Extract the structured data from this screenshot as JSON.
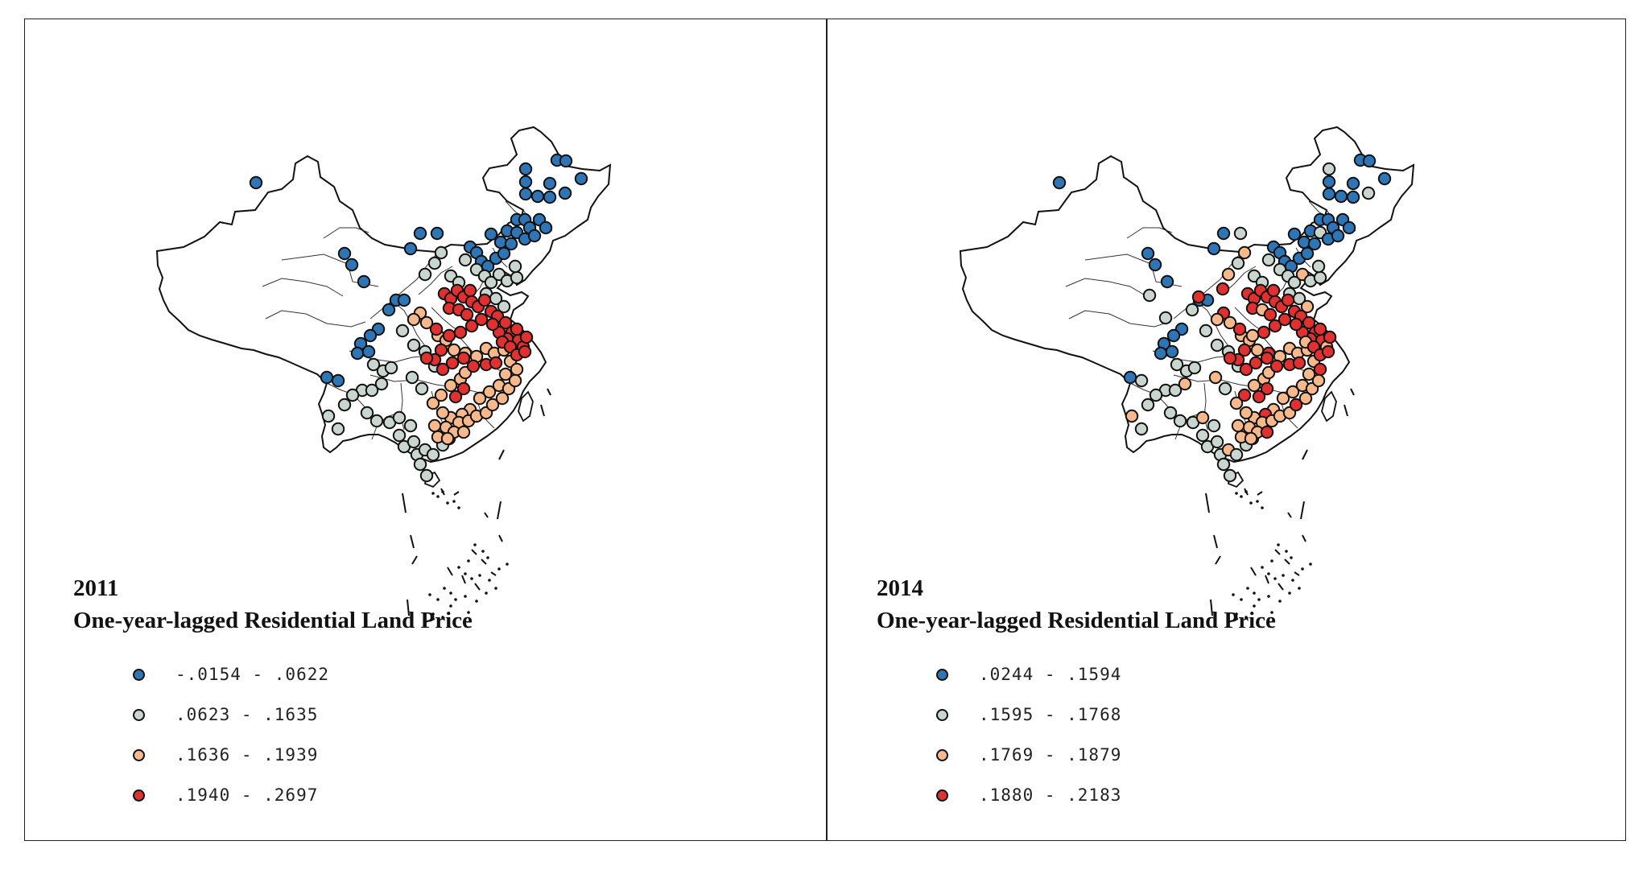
{
  "colors": {
    "class1": "#2e75b6",
    "class2": "#c9d6cf",
    "class3": "#f7b98b",
    "class4": "#e03030",
    "outline": "#111111"
  },
  "panels": [
    {
      "year": "2011",
      "title": "One-year-lagged Residential Land Price",
      "legend": [
        {
          "label": "-.0154 - .0622",
          "color_key": "class1"
        },
        {
          "label": ".0623 - .1635",
          "color_key": "class2"
        },
        {
          "label": ".1636 - .1939",
          "color_key": "class3"
        },
        {
          "label": ".1940 - .2697",
          "color_key": "class4"
        }
      ]
    },
    {
      "year": "2014",
      "title": "One-year-lagged Residential Land Price",
      "legend": [
        {
          "label": ".0244 - .1594",
          "color_key": "class1"
        },
        {
          "label": ".1595 - .1768",
          "color_key": "class2"
        },
        {
          "label": ".1769 - .1879",
          "color_key": "class3"
        },
        {
          "label": ".1880 - .2183",
          "color_key": "class4"
        }
      ]
    }
  ]
}
